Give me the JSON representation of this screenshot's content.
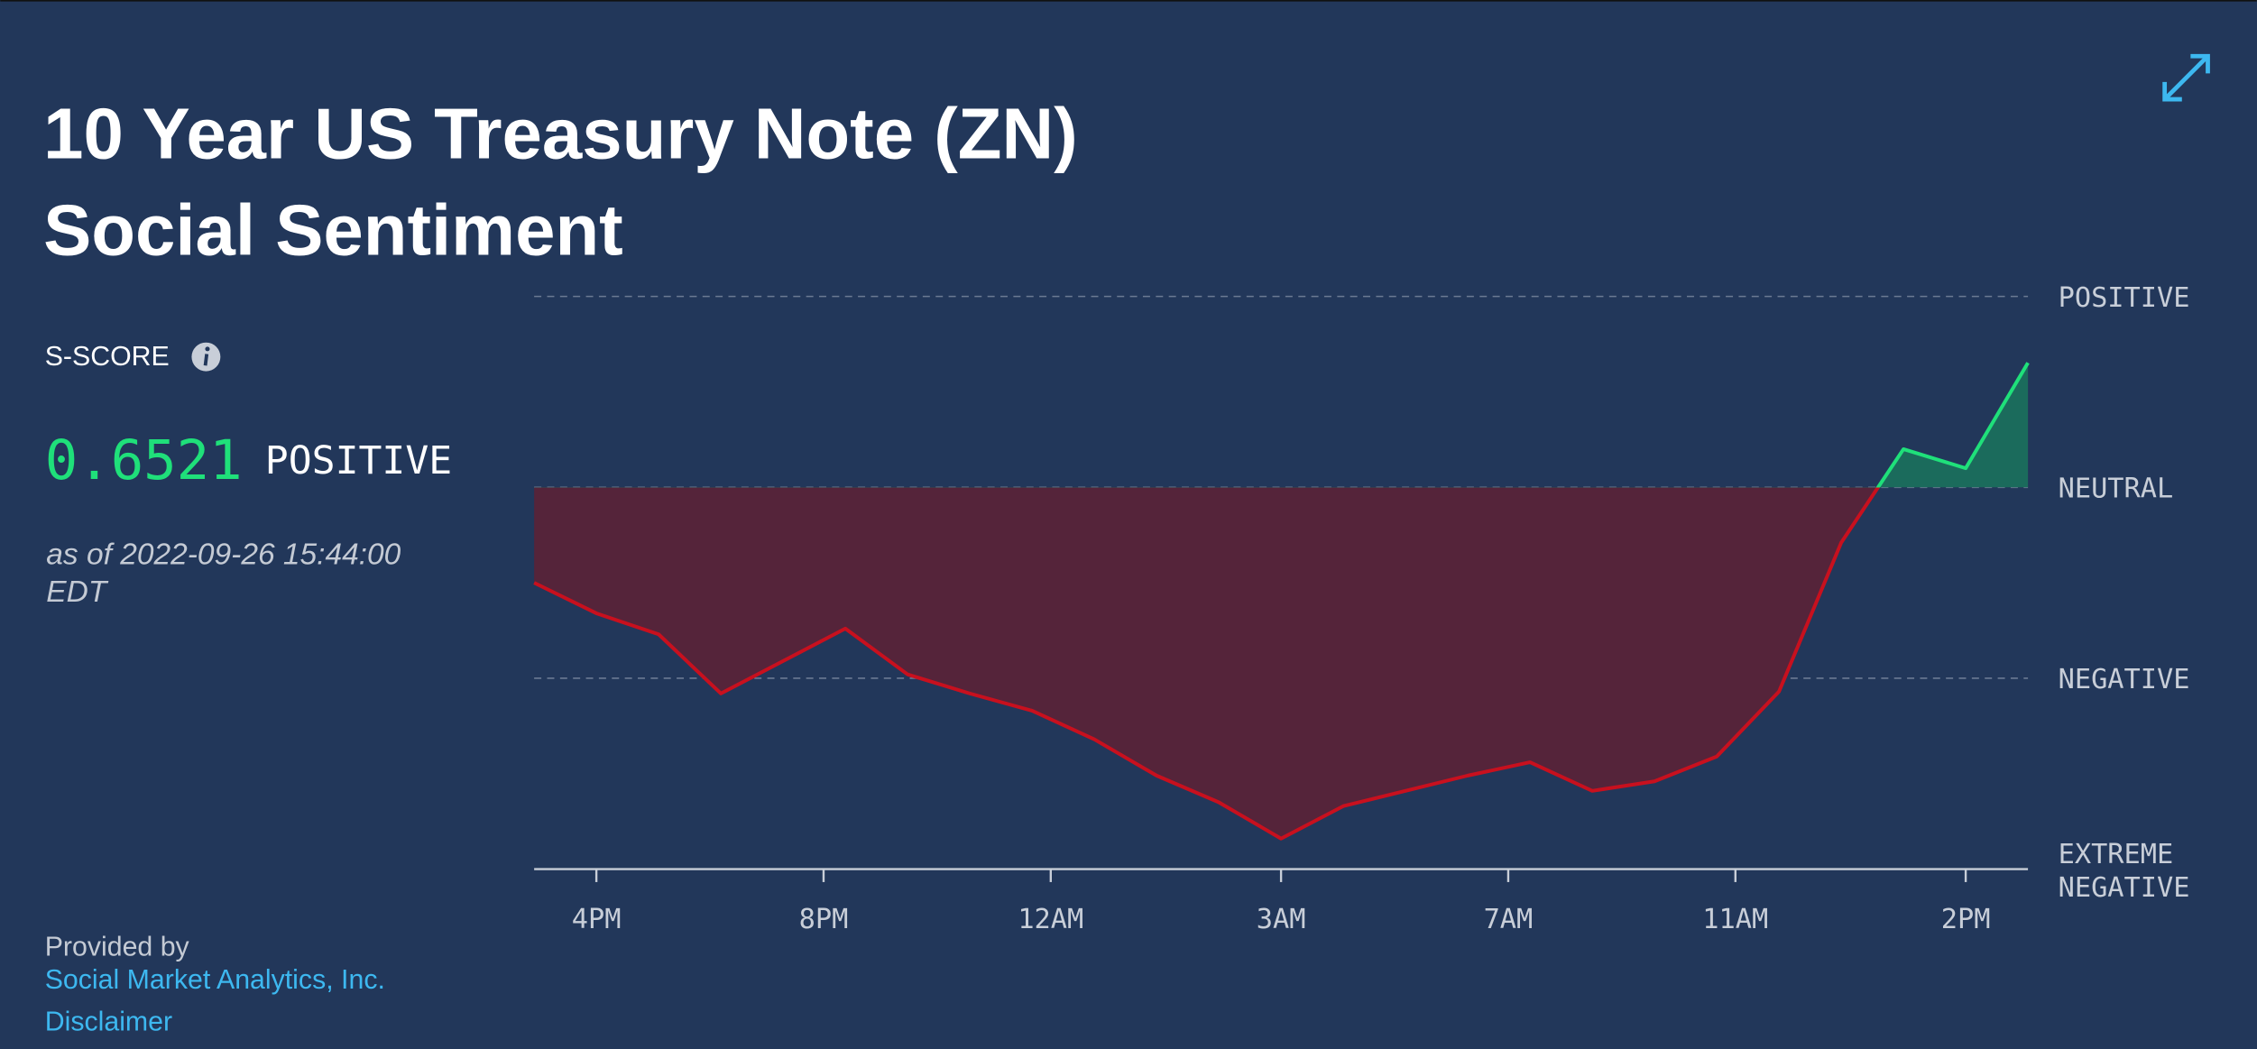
{
  "header": {
    "title_lines": [
      "10 Year US Treasury Note (ZN)",
      "Social Sentiment"
    ]
  },
  "score_panel": {
    "label": "S-SCORE",
    "score": 0.6521,
    "status": "POSITIVE",
    "as_of_lines": [
      "as of 2022-09-26 15:44:00",
      "EDT"
    ]
  },
  "footer": {
    "provided_by": "Provided by",
    "provider": "Social Market Analytics, Inc.",
    "disclaimer": "Disclaimer"
  },
  "chart_data": {
    "type": "area-line",
    "x": [
      0,
      1,
      2,
      3,
      4,
      5,
      6,
      7,
      8,
      9,
      10,
      11,
      12,
      13,
      14,
      15,
      16,
      17,
      18,
      19,
      20,
      21,
      22,
      23,
      24
    ],
    "values": [
      -0.5,
      -0.66,
      -0.77,
      -1.08,
      -0.91,
      -0.74,
      -0.98,
      -1.08,
      -1.17,
      -1.32,
      -1.51,
      -1.65,
      -1.84,
      -1.67,
      -1.59,
      -1.51,
      -1.44,
      -1.59,
      -1.54,
      -1.41,
      -1.07,
      -0.29,
      0.2,
      0.1,
      0.6521
    ],
    "xlim": [
      0,
      24
    ],
    "xticks": [
      {
        "value": 1,
        "label": "4PM"
      },
      {
        "value": 4.65,
        "label": "8PM"
      },
      {
        "value": 8.3,
        "label": "12AM"
      },
      {
        "value": 12,
        "label": "3AM"
      },
      {
        "value": 15.65,
        "label": "7AM"
      },
      {
        "value": 19.3,
        "label": "11AM"
      },
      {
        "value": 23,
        "label": "2PM"
      }
    ],
    "ylim": [
      -2,
      1
    ],
    "yticks": [
      {
        "value": 1,
        "label": "POSITIVE"
      },
      {
        "value": 0,
        "label": "NEUTRAL"
      },
      {
        "value": -1,
        "label": "NEGATIVE"
      },
      {
        "value": -2,
        "label": "EXTREME NEGATIVE"
      }
    ],
    "positive_color": "#1fe07a",
    "negative_color": "#c8101e",
    "positive_fill": "#1b6b5c",
    "negative_fill": "#55243a",
    "grid": true
  }
}
